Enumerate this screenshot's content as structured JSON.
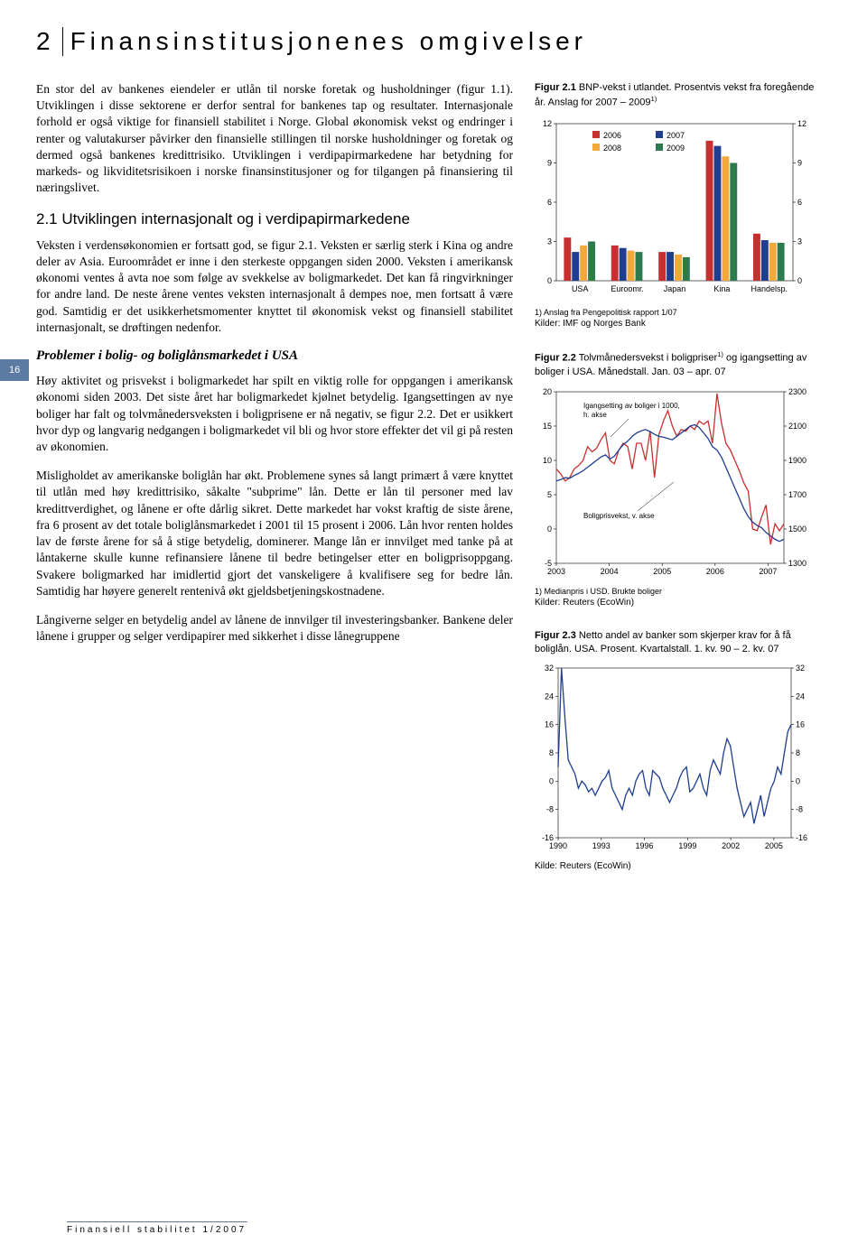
{
  "header": {
    "page_number": "2",
    "title": "Finansinstitusjonenes omgivelser"
  },
  "side_page": "16",
  "paragraphs": {
    "p1": "En stor del av bankenes eiendeler er utlån til norske foretak og husholdninger (figur 1.1). Utviklingen i disse sektorene er derfor sentral for bankenes tap og resultater. Internasjonale forhold er også viktige for finansiell stabilitet i Norge. Global økonomisk vekst og endringer i renter og valutakurser påvirker den finansielle stillingen til norske husholdninger og foretak og dermed også bankenes kredittrisiko. Utviklingen i verdipapirmarkedene har betydning for markeds- og likviditetsrisikoen i norske finansinstitusjoner og for tilgangen på finansiering til næringslivet.",
    "h1": "2.1 Utviklingen internasjonalt og i verdipapirmarkedene",
    "p2": "Veksten i verdensøkonomien er fortsatt god, se figur 2.1. Veksten er særlig sterk i Kina og andre deler av Asia. Euroområdet er inne i den sterkeste oppgangen siden 2000. Veksten i amerikansk økonomi ventes å avta noe som følge av svekkelse av boligmarkedet. Det kan få ringvirkninger for andre land. De neste årene ventes veksten internasjonalt å dempes noe, men fortsatt å være god. Samtidig er det usikkerhetsmomenter knyttet til økonomisk vekst og finansiell stabilitet internasjonalt, se drøftingen nedenfor.",
    "h2": "Problemer i bolig- og boliglånsmarkedet i USA",
    "p3": "Høy aktivitet og prisvekst i boligmarkedet har spilt en viktig rolle for oppgangen i amerikansk økonomi siden 2003. Det siste året har boligmarkedet kjølnet betydelig. Igangsettingen av nye boliger har falt og tolvmånedersveksten i boligprisene er nå negativ, se figur 2.2. Det er usikkert hvor dyp og langvarig nedgangen i boligmarkedet vil bli og hvor store effekter det vil gi på resten av økonomien.",
    "p4": "Misligholdet av amerikanske boliglån har økt. Problemene synes så langt primært å være knyttet til utlån med høy kredittrisiko, såkalte \"subprime\" lån. Dette er lån til personer med lav kredittverdighet, og lånene er ofte dårlig sikret. Dette markedet har vokst kraftig de siste årene, fra 6 prosent av det totale boliglånsmarkedet i 2001 til 15 prosent i 2006. Lån hvor renten holdes lav de første årene for så å stige betydelig, dominerer. Mange lån er innvilget med tanke på at låntakerne skulle kunne refinansiere lånene til bedre betingelser etter en boligprisoppgang. Svakere boligmarked har imidlertid gjort det vanskeligere å kvalifisere seg for bedre lån. Samtidig har høyere generelt rentenivå økt gjeldsbetjeningskostnadene.",
    "p5": "Långiverne selger en betydelig andel av lånene de innvilger til investeringsbanker. Bankene deler lånene i grupper og selger verdipapirer med sikkerhet i disse lånegruppene"
  },
  "figure21": {
    "title_prefix": "Figur 2.1",
    "title": "BNP-vekst i utlandet. Prosentvis vekst fra foregående år. Anslag for 2007 – 2009",
    "title_sup": "1)",
    "categories": [
      "USA",
      "Euroomr.",
      "Japan",
      "Kina",
      "Handelsp."
    ],
    "series": [
      {
        "name": "2006",
        "color": "#c73030",
        "values": [
          3.3,
          2.7,
          2.2,
          10.7,
          3.6
        ]
      },
      {
        "name": "2007",
        "color": "#1f3e8f",
        "values": [
          2.2,
          2.5,
          2.2,
          10.3,
          3.1
        ]
      },
      {
        "name": "2008",
        "color": "#f0a93a",
        "values": [
          2.7,
          2.3,
          2.0,
          9.5,
          2.9
        ]
      },
      {
        "name": "2009",
        "color": "#2d7a4f",
        "values": [
          3.0,
          2.2,
          1.8,
          9.0,
          2.9
        ]
      }
    ],
    "ylim": [
      0,
      12
    ],
    "ytick_step": 3,
    "footnote": "1) Anslag fra Pengepolitisk rapport 1/07",
    "source": "Kilder: IMF og Norges Bank",
    "background": "#ffffff",
    "axis_fontsize": 9
  },
  "figure22": {
    "title_prefix": "Figur 2.2",
    "title": "Tolvmånedersvekst i boligpriser",
    "title_sup": "1)",
    "title_tail": " og igangsetting av boliger i USA. Månedstall. Jan. 03 – apr. 07",
    "left_ylim": [
      -5,
      20
    ],
    "left_ticks": [
      -5,
      0,
      5,
      10,
      15,
      20
    ],
    "right_ylim": [
      1300,
      2300
    ],
    "right_ticks": [
      1300,
      1500,
      1700,
      1900,
      2100,
      2300
    ],
    "x_ticks": [
      "2003",
      "2004",
      "2005",
      "2006",
      "2007"
    ],
    "annot1": "Igangsetting av boliger i 1000, h. akse",
    "annot2": "Boligprisvekst, v. akse",
    "series_starts": {
      "color": "#c73030",
      "y": [
        1850,
        1820,
        1780,
        1800,
        1850,
        1870,
        1900,
        1980,
        1950,
        1970,
        2020,
        2060,
        1900,
        1880,
        1960,
        2000,
        1980,
        1850,
        2000,
        2000,
        1900,
        2070,
        1800,
        2050,
        2130,
        2190,
        2100,
        2040,
        2080,
        2070,
        2100,
        2080,
        2130,
        2110,
        2130,
        2000,
        2290,
        2120,
        2000,
        1960,
        1900,
        1840,
        1770,
        1720,
        1500,
        1490,
        1570,
        1640,
        1410,
        1530,
        1490,
        1530
      ]
    },
    "series_price": {
      "color": "#1f3e8f",
      "y": [
        7.0,
        7.2,
        7.5,
        7.4,
        7.8,
        8.1,
        8.5,
        9.0,
        9.5,
        10.0,
        10.5,
        10.8,
        10.2,
        10.6,
        11.5,
        12.3,
        12.8,
        13.5,
        14.0,
        14.3,
        14.5,
        14.2,
        13.8,
        13.5,
        13.4,
        13.2,
        13.0,
        13.5,
        14.0,
        14.5,
        15.0,
        15.2,
        14.8,
        14.0,
        13.2,
        12.0,
        11.5,
        10.5,
        9.0,
        7.5,
        6.0,
        4.5,
        3.0,
        1.8,
        1.0,
        0.5,
        0.2,
        -0.5,
        -1.0,
        -1.5,
        -1.8,
        -1.5
      ]
    },
    "footnote": "1) Medianpris i USD. Brukte boliger",
    "source": "Kilder: Reuters (EcoWin)"
  },
  "figure23": {
    "title_prefix": "Figur 2.3",
    "title": "Netto andel av banker som skjerper krav for å få boliglån. USA. Prosent. Kvartalstall. 1. kv. 90 – 2. kv. 07",
    "ylim": [
      -16,
      32
    ],
    "yticks": [
      -16,
      -8,
      0,
      8,
      16,
      24,
      32
    ],
    "x_ticks": [
      "1990",
      "1993",
      "1996",
      "1999",
      "2002",
      "2005"
    ],
    "series": {
      "color": "#1f3e8f",
      "y": [
        4,
        32,
        18,
        6,
        4,
        2,
        -2,
        0,
        -1,
        -3,
        -2,
        -4,
        -2,
        0,
        1,
        3,
        -2,
        -4,
        -6,
        -8,
        -4,
        -2,
        -4,
        0,
        2,
        3,
        -2,
        -4,
        3,
        2,
        1,
        -2,
        -4,
        -6,
        -4,
        -2,
        1,
        3,
        4,
        -3,
        -2,
        0,
        2,
        -2,
        -4,
        3,
        6,
        4,
        2,
        8,
        12,
        10,
        4,
        -2,
        -6,
        -10,
        -8,
        -6,
        -12,
        -8,
        -4,
        -10,
        -6,
        -2,
        0,
        4,
        2,
        8,
        14,
        16
      ]
    },
    "source": "Kilde: Reuters (EcoWin)"
  },
  "footer": "Finansiell stabilitet 1/2007"
}
